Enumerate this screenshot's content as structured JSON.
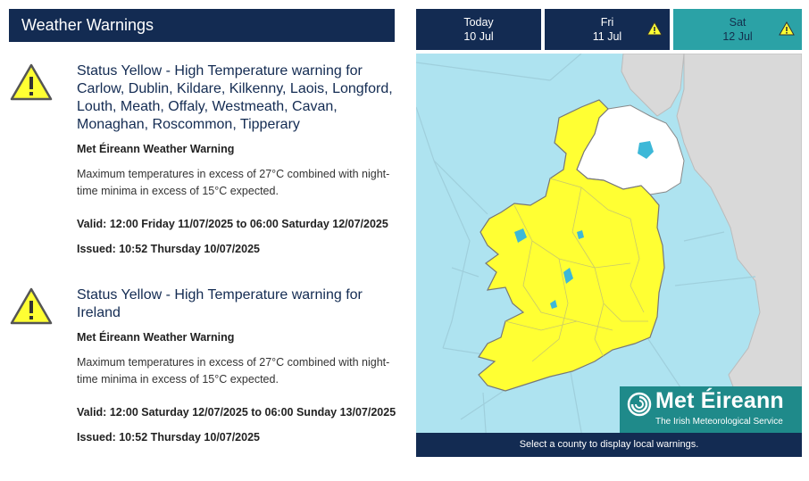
{
  "header": {
    "title": "Weather Warnings"
  },
  "warnings": [
    {
      "title": "Status Yellow - High Temperature warning for Carlow, Dublin, Kildare, Kilkenny, Laois, Longford, Louth, Meath, Offaly, Westmeath, Cavan, Monaghan, Roscommon, Tipperary",
      "source": "Met Éireann Weather Warning",
      "description": "Maximum temperatures in excess of 27°C combined with night-time minima in excess of 15°C expected.",
      "valid": "Valid: 12:00 Friday 11/07/2025 to 06:00 Saturday 12/07/2025",
      "issued": "Issued: 10:52 Thursday 10/07/2025",
      "level": "yellow",
      "icon": "warning-triangle-icon"
    },
    {
      "title": "Status Yellow - High Temperature warning for Ireland",
      "source": "Met Éireann Weather Warning",
      "description": "Maximum temperatures in excess of 27°C combined with night-time minima in excess of 15°C expected.",
      "valid": "Valid: 12:00 Saturday 12/07/2025 to 06:00 Sunday 13/07/2025",
      "issued": "Issued: 10:52 Thursday 10/07/2025",
      "level": "yellow",
      "icon": "warning-triangle-icon"
    }
  ],
  "tabs": [
    {
      "day": "Today",
      "date": "10 Jul",
      "warning": false,
      "active": false
    },
    {
      "day": "Fri",
      "date": "11 Jul",
      "warning": true,
      "active": false
    },
    {
      "day": "Sat",
      "date": "12 Jul",
      "warning": true,
      "active": true
    }
  ],
  "map": {
    "logo_name": "Met Éireann",
    "logo_sub": "The Irish Meteorological Service",
    "footer": "Select a county to display local warnings."
  },
  "colors": {
    "navy": "#132b52",
    "teal": "#2ba2a6",
    "warning_yellow": "#ffff33",
    "sea": "#aee3f0",
    "land_other": "#d9d9d9"
  }
}
